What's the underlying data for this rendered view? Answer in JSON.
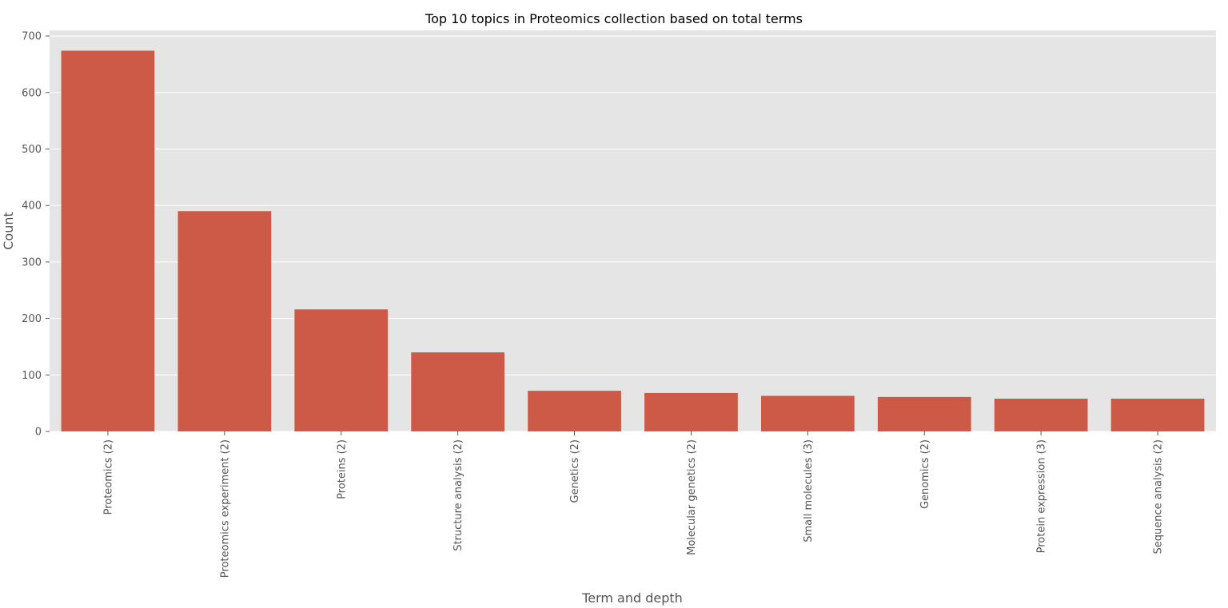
{
  "chart_data": {
    "type": "bar",
    "title": "Top 10 topics in Proteomics collection based on total terms",
    "xlabel": "Term and depth",
    "ylabel": "Count",
    "categories": [
      "Proteomics (2)",
      "Proteomics experiment (2)",
      "Proteins (2)",
      "Structure analysis (2)",
      "Genetics (2)",
      "Molecular genetics (2)",
      "Small molecules (3)",
      "Genomics (2)",
      "Protein expression (3)",
      "Sequence analysis (2)"
    ],
    "values": [
      674,
      390,
      216,
      140,
      72,
      68,
      63,
      61,
      58,
      58
    ],
    "ylim": [
      0,
      710
    ],
    "yticks": [
      0,
      100,
      200,
      300,
      400,
      500,
      600,
      700
    ],
    "grid": true,
    "legend": "none",
    "colors": {
      "bar": "#CC5A47",
      "plot_background": "#E5E5E5",
      "grid": "#FFFFFF",
      "tick_label": "#555555",
      "title": "#000000"
    }
  }
}
